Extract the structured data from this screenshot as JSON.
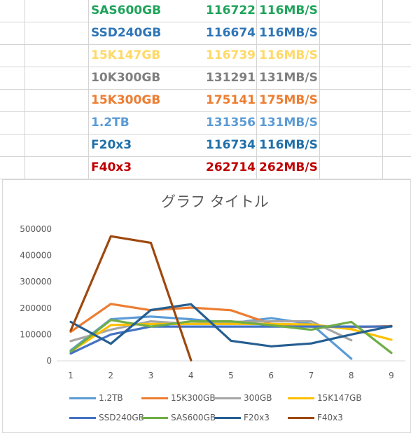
{
  "sheet": {
    "rows": [
      {
        "name": "SAS600GB",
        "value": "116722",
        "speed": "116MB/S",
        "color": "#1ea35a"
      },
      {
        "name": "SSD240GB",
        "value": "116674",
        "speed": "116MB/S",
        "color": "#2e75b6"
      },
      {
        "name": "15K147GB",
        "value": "116739",
        "speed": "116MB/S",
        "color": "#ffd966"
      },
      {
        "name": "10K300GB",
        "value": "131291",
        "speed": "131MB/S",
        "color": "#7f7f7f"
      },
      {
        "name": "15K300GB",
        "value": "175141",
        "speed": "175MB/S",
        "color": "#ed7d31"
      },
      {
        "name": "1.2TB",
        "value": "131356",
        "speed": "131MB/S",
        "color": "#5b9bd5"
      },
      {
        "name": "F20x3",
        "value": "116734",
        "speed": "116MB/S",
        "color": "#1f6fa8"
      },
      {
        "name": "F40x3",
        "value": "262714",
        "speed": "262MB/S",
        "color": "#c00000"
      }
    ]
  },
  "chart_data": {
    "type": "line",
    "title": "グラフ タイトル",
    "x": [
      1,
      2,
      3,
      4,
      5,
      6,
      7,
      8,
      9
    ],
    "ylim": [
      0,
      500000
    ],
    "yticks": [
      "0",
      "100000",
      "200000",
      "300000",
      "400000",
      "500000"
    ],
    "grid": false,
    "legend": "bottom",
    "series": [
      {
        "name": "1.2TB",
        "color": "#5b9bd5",
        "values": [
          40000,
          158000,
          168000,
          158000,
          143000,
          162000,
          140000,
          8000,
          null
        ]
      },
      {
        "name": "15K300GB",
        "color": "#ed7d31",
        "values": [
          110000,
          216000,
          192000,
          202000,
          192000,
          140000,
          130000,
          128000,
          132000
        ]
      },
      {
        "name": "300GB",
        "color": "#a5a5a5",
        "values": [
          75000,
          118000,
          150000,
          140000,
          148000,
          150000,
          150000,
          78000,
          null
        ]
      },
      {
        "name": "15K147GB",
        "color": "#ffc000",
        "values": [
          35000,
          136000,
          140000,
          140000,
          140000,
          140000,
          138000,
          120000,
          80000
        ]
      },
      {
        "name": "SSD240GB",
        "color": "#4472c4",
        "values": [
          28000,
          100000,
          130000,
          130000,
          130000,
          130000,
          130000,
          130000,
          130000
        ]
      },
      {
        "name": "SAS600GB",
        "color": "#70ad47",
        "values": [
          35000,
          155000,
          130000,
          150000,
          150000,
          135000,
          118000,
          148000,
          30000
        ]
      },
      {
        "name": "F20x3",
        "color": "#255e91",
        "values": [
          148000,
          65000,
          193000,
          215000,
          76000,
          55000,
          66000,
          100000,
          132000
        ]
      },
      {
        "name": "F40x3",
        "color": "#9e480e",
        "values": [
          115000,
          473000,
          448000,
          2000,
          null,
          null,
          null,
          null,
          null
        ]
      }
    ]
  }
}
